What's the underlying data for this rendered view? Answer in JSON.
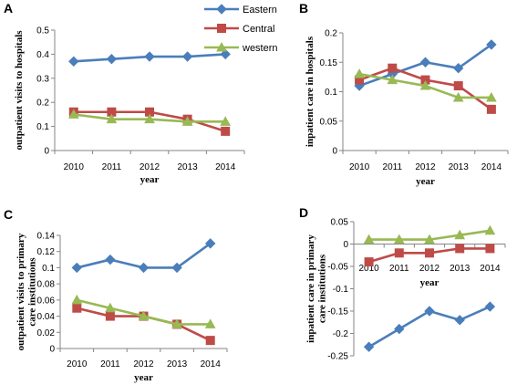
{
  "legend": [
    "Eastern",
    "Central",
    "western"
  ],
  "colors": {
    "Eastern": "#4a7ebb",
    "Central": "#be4b48",
    "western": "#98b954"
  },
  "chart_data": [
    {
      "panel": "A",
      "type": "line",
      "x": [
        "2010",
        "2011",
        "2012",
        "2013",
        "2014"
      ],
      "xlabel": "year",
      "ylabel": "outpatient visits to hospitals",
      "ylim": [
        0,
        0.5
      ],
      "yticks": [
        "0",
        "0.1",
        "0.2",
        "0.3",
        "0.4",
        "0.5"
      ],
      "series": [
        {
          "name": "Eastern",
          "values": [
            0.37,
            0.38,
            0.39,
            0.39,
            0.4
          ]
        },
        {
          "name": "Central",
          "values": [
            0.16,
            0.16,
            0.16,
            0.13,
            0.08
          ]
        },
        {
          "name": "western",
          "values": [
            0.15,
            0.13,
            0.13,
            0.12,
            0.12
          ]
        }
      ]
    },
    {
      "panel": "B",
      "type": "line",
      "x": [
        "2010",
        "2011",
        "2012",
        "2013",
        "2014"
      ],
      "xlabel": "year",
      "ylabel": "inpatient care in hospitals",
      "ylim": [
        0,
        0.2
      ],
      "yticks": [
        "0",
        "0.05",
        "0.1",
        "0.15",
        "0.2"
      ],
      "series": [
        {
          "name": "Eastern",
          "values": [
            0.11,
            0.13,
            0.15,
            0.14,
            0.18
          ]
        },
        {
          "name": "Central",
          "values": [
            0.12,
            0.14,
            0.12,
            0.11,
            0.07
          ]
        },
        {
          "name": "western",
          "values": [
            0.13,
            0.12,
            0.11,
            0.09,
            0.09
          ]
        }
      ]
    },
    {
      "panel": "C",
      "type": "line",
      "x": [
        "2010",
        "2011",
        "2012",
        "2013",
        "2014"
      ],
      "xlabel": "year",
      "ylabel": "outpatient visits to primary care institutions",
      "ylim": [
        0,
        0.14
      ],
      "yticks": [
        "0",
        "0.02",
        "0.04",
        "0.06",
        "0.08",
        "0.1",
        "0.12",
        "0.14"
      ],
      "series": [
        {
          "name": "Eastern",
          "values": [
            0.1,
            0.11,
            0.1,
            0.1,
            0.13
          ]
        },
        {
          "name": "Central",
          "values": [
            0.05,
            0.04,
            0.04,
            0.03,
            0.01
          ]
        },
        {
          "name": "western",
          "values": [
            0.06,
            0.05,
            0.04,
            0.03,
            0.03
          ]
        }
      ]
    },
    {
      "panel": "D",
      "type": "line",
      "x": [
        "2010",
        "2011",
        "2012",
        "2013",
        "2014"
      ],
      "xlabel": "year",
      "ylabel": "inpatient care in primary care institutions",
      "ylim": [
        -0.25,
        0.05
      ],
      "yticks": [
        "-0.25",
        "-0.2",
        "-0.15",
        "-0.1",
        "-0.05",
        "0",
        "0.05"
      ],
      "series": [
        {
          "name": "Eastern",
          "values": [
            -0.23,
            -0.19,
            -0.15,
            -0.17,
            -0.14
          ]
        },
        {
          "name": "Central",
          "values": [
            -0.04,
            -0.02,
            -0.02,
            -0.01,
            -0.01
          ]
        },
        {
          "name": "western",
          "values": [
            0.01,
            0.01,
            0.01,
            0.02,
            0.03
          ]
        }
      ]
    }
  ]
}
